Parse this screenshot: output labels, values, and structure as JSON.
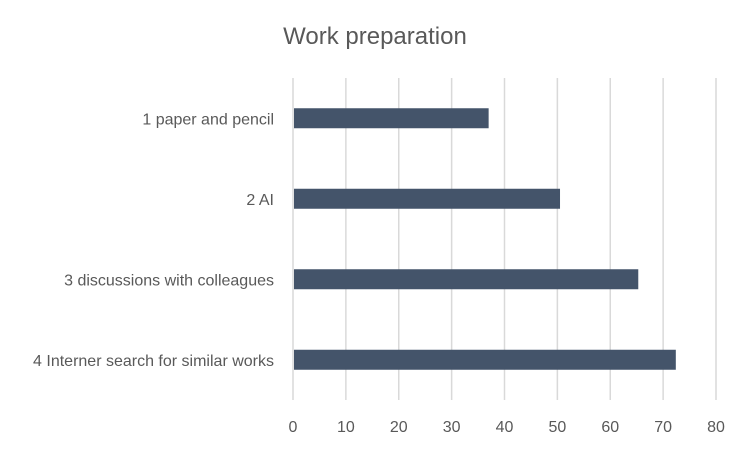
{
  "chart_data": {
    "type": "bar",
    "orientation": "horizontal",
    "title": "Work preparation",
    "categories": [
      "1 paper and pencil",
      "2 AI",
      "3 discussions with colleagues",
      "4 Interner search for similar works"
    ],
    "values": [
      37,
      50.5,
      65.3,
      72.4
    ],
    "xlabel": "",
    "ylabel": "",
    "xlim": [
      0,
      80
    ],
    "ticks": [
      "0",
      "10",
      "20",
      "30",
      "40",
      "50",
      "60",
      "70",
      "80"
    ],
    "grid": "vertical",
    "legend": "none",
    "colors": {
      "bar": "#44546a",
      "grid": "#d9d9d9",
      "text": "#595959"
    }
  }
}
